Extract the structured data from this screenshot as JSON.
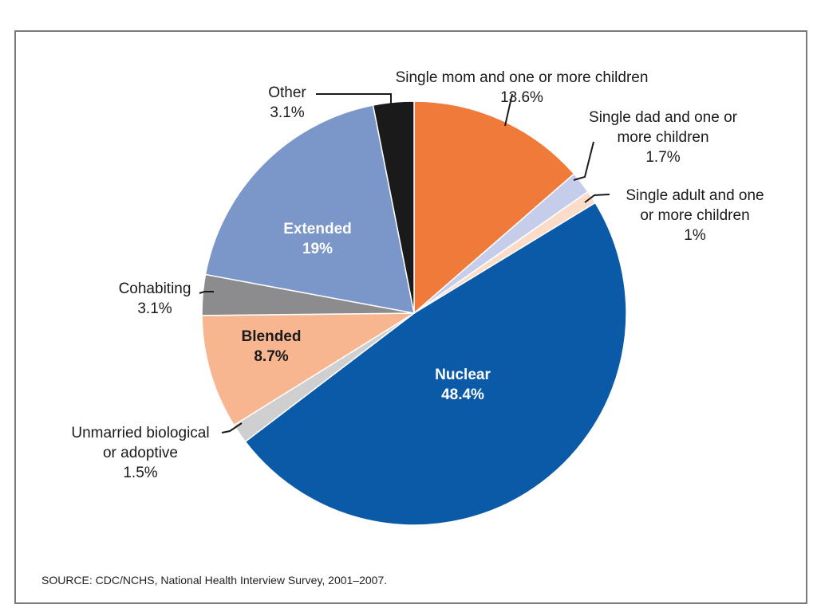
{
  "chart_data": {
    "type": "pie",
    "start_angle_deg": 0,
    "direction": "clockwise",
    "slices": [
      {
        "name": "Single mom and one or more children",
        "value": 13.6,
        "label_lines": [
          "Single mom and one or more children",
          "13.6%"
        ],
        "color": "#f07a3a",
        "label_inside": false
      },
      {
        "name": "Single dad and one or more children",
        "value": 1.7,
        "label_lines": [
          "Single dad and one or",
          "more children",
          "1.7%"
        ],
        "color": "#c5cdeb",
        "label_inside": false
      },
      {
        "name": "Single adult and one or more children",
        "value": 1.0,
        "label_lines": [
          "Single adult and one",
          "or more children",
          "1%"
        ],
        "color": "#fbdcc8",
        "label_inside": false
      },
      {
        "name": "Nuclear",
        "value": 48.4,
        "label_lines": [
          "Nuclear",
          "48.4%"
        ],
        "color": "#0a5aa8",
        "label_inside": true,
        "label_color": "#ffffff"
      },
      {
        "name": "Unmarried biological or adoptive",
        "value": 1.5,
        "label_lines": [
          "Unmarried biological",
          "or adoptive",
          "1.5%"
        ],
        "color": "#cfcfcf",
        "label_inside": false
      },
      {
        "name": "Blended",
        "value": 8.7,
        "label_lines": [
          "Blended",
          "8.7%"
        ],
        "color": "#f8b690",
        "label_inside": true,
        "label_color": "#1a1a1a"
      },
      {
        "name": "Cohabiting",
        "value": 3.1,
        "label_lines": [
          "Cohabiting",
          "3.1%"
        ],
        "color": "#8c8c8e",
        "label_inside": false
      },
      {
        "name": "Extended",
        "value": 19.0,
        "label_lines": [
          "Extended",
          "19%"
        ],
        "color": "#7b96c9",
        "label_inside": true,
        "label_color": "#ffffff"
      },
      {
        "name": "Other",
        "value": 3.1,
        "label_lines": [
          "Other",
          "3.1%"
        ],
        "color": "#1a1a1a",
        "label_inside": false
      }
    ]
  },
  "source_text": "SOURCE: CDC/NCHS, National Health Interview Survey, 2001–2007."
}
